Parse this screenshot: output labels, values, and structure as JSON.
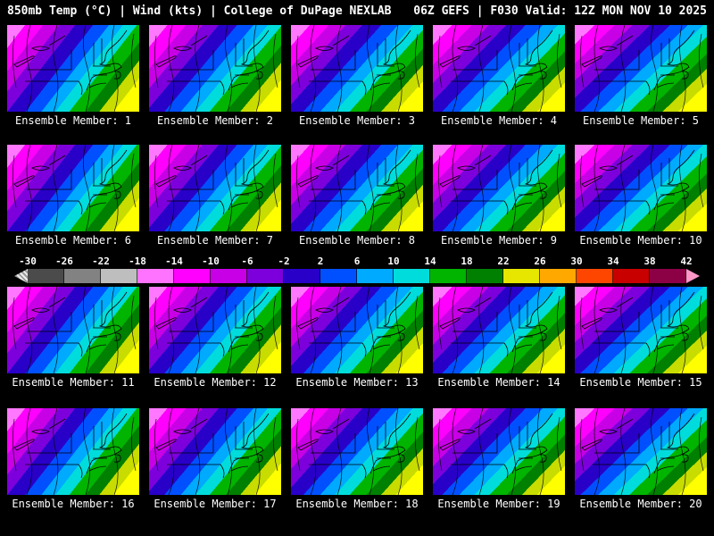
{
  "header": {
    "left": "850mb Temp (°C) | Wind (kts) | College of DuPage NEXLAB",
    "right": "06Z GEFS | F030 Valid: 12Z MON NOV 10 2025"
  },
  "members": [
    {
      "label": "Ensemble Member: 1"
    },
    {
      "label": "Ensemble Member: 2"
    },
    {
      "label": "Ensemble Member: 3"
    },
    {
      "label": "Ensemble Member: 4"
    },
    {
      "label": "Ensemble Member: 5"
    },
    {
      "label": "Ensemble Member: 6"
    },
    {
      "label": "Ensemble Member: 7"
    },
    {
      "label": "Ensemble Member: 8"
    },
    {
      "label": "Ensemble Member: 9"
    },
    {
      "label": "Ensemble Member: 10"
    },
    {
      "label": "Ensemble Member: 11"
    },
    {
      "label": "Ensemble Member: 12"
    },
    {
      "label": "Ensemble Member: 13"
    },
    {
      "label": "Ensemble Member: 14"
    },
    {
      "label": "Ensemble Member: 15"
    },
    {
      "label": "Ensemble Member: 16"
    },
    {
      "label": "Ensemble Member: 17"
    },
    {
      "label": "Ensemble Member: 18"
    },
    {
      "label": "Ensemble Member: 19"
    },
    {
      "label": "Ensemble Member: 20"
    }
  ],
  "colorbar": {
    "ticks": [
      "-30",
      "-26",
      "-22",
      "-18",
      "-14",
      "-10",
      "-6",
      "-2",
      "2",
      "6",
      "10",
      "14",
      "18",
      "22",
      "26",
      "30",
      "34",
      "38",
      "42"
    ],
    "segment_colors": [
      "#4b4b4b",
      "#828282",
      "#bebebe",
      "#ff73ff",
      "#ff00ff",
      "#c800e6",
      "#7d00dc",
      "#2800c8",
      "#0050ff",
      "#00aaff",
      "#00dcdc",
      "#00b400",
      "#008000",
      "#e6e600",
      "#ffa800",
      "#ff4600",
      "#c80000",
      "#8c0046"
    ],
    "left_arrow_style": "hatched-gray",
    "right_arrow_color": "#ff96c8"
  },
  "map": {
    "gradient_angle_deg": 132,
    "bands": [
      {
        "color": "#ff78ff",
        "to": 9
      },
      {
        "color": "#ff00ff",
        "to": 18
      },
      {
        "color": "#c800e6",
        "to": 26
      },
      {
        "color": "#7d00dc",
        "to": 34
      },
      {
        "color": "#2800c8",
        "to": 43
      },
      {
        "color": "#0050ff",
        "to": 51
      },
      {
        "color": "#00aaff",
        "to": 58
      },
      {
        "color": "#00dcdc",
        "to": 65
      },
      {
        "color": "#00b400",
        "to": 73
      },
      {
        "color": "#008000",
        "to": 80
      },
      {
        "color": "#c8dc00",
        "to": 87
      },
      {
        "color": "#ffff00",
        "to": 100
      }
    ]
  }
}
